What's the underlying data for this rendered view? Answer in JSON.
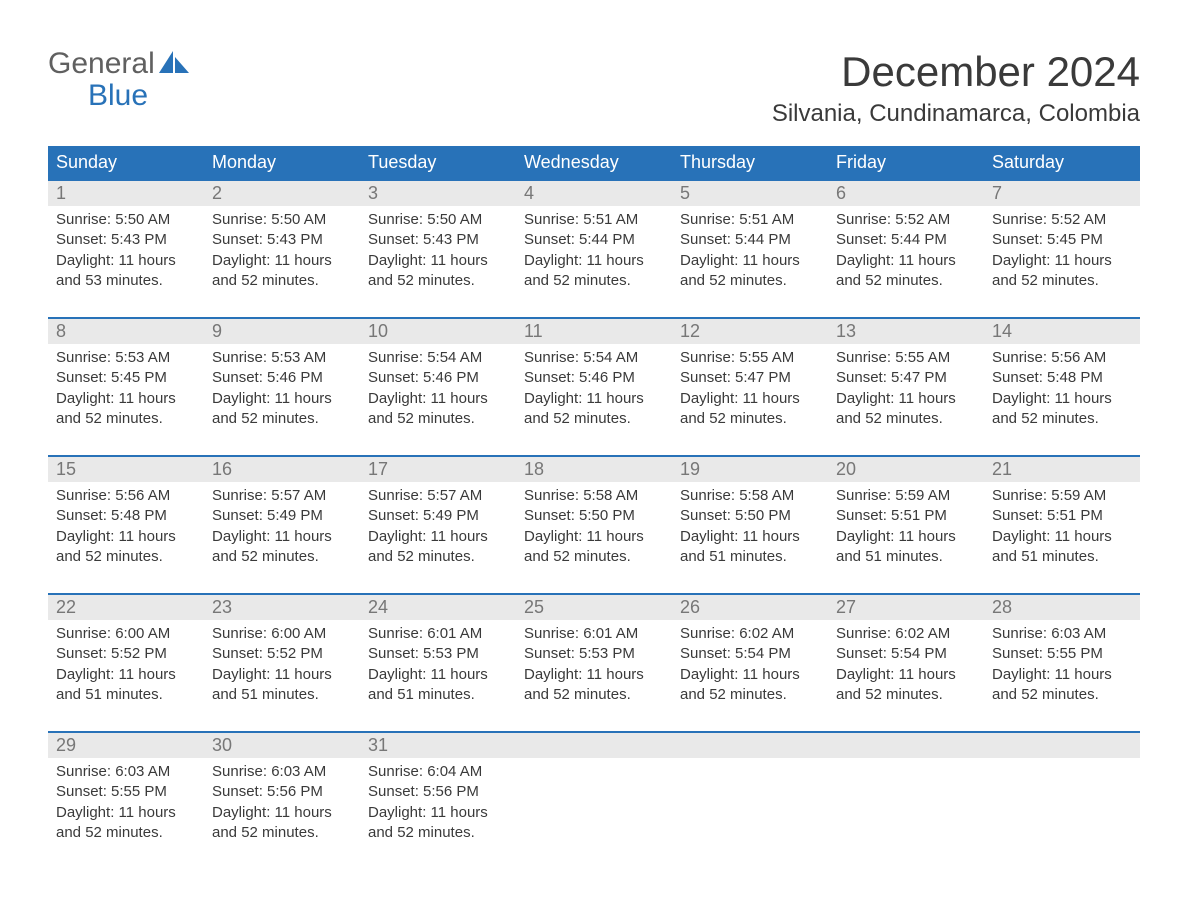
{
  "brand": {
    "word1": "General",
    "word2": "Blue",
    "accent_color": "#2872b8"
  },
  "title": "December 2024",
  "location": "Silvania, Cundinamarca, Colombia",
  "colors": {
    "header_bg": "#2872b8",
    "header_text": "#ffffff",
    "daynum_bg": "#e9e9e9",
    "daynum_text": "#777777",
    "body_text": "#3a3a3a",
    "page_bg": "#ffffff",
    "week_border": "#2872b8"
  },
  "day_headers": [
    "Sunday",
    "Monday",
    "Tuesday",
    "Wednesday",
    "Thursday",
    "Friday",
    "Saturday"
  ],
  "weeks": [
    [
      {
        "n": "1",
        "sunrise": "5:50 AM",
        "sunset": "5:43 PM",
        "daylight": "11 hours and 53 minutes."
      },
      {
        "n": "2",
        "sunrise": "5:50 AM",
        "sunset": "5:43 PM",
        "daylight": "11 hours and 52 minutes."
      },
      {
        "n": "3",
        "sunrise": "5:50 AM",
        "sunset": "5:43 PM",
        "daylight": "11 hours and 52 minutes."
      },
      {
        "n": "4",
        "sunrise": "5:51 AM",
        "sunset": "5:44 PM",
        "daylight": "11 hours and 52 minutes."
      },
      {
        "n": "5",
        "sunrise": "5:51 AM",
        "sunset": "5:44 PM",
        "daylight": "11 hours and 52 minutes."
      },
      {
        "n": "6",
        "sunrise": "5:52 AM",
        "sunset": "5:44 PM",
        "daylight": "11 hours and 52 minutes."
      },
      {
        "n": "7",
        "sunrise": "5:52 AM",
        "sunset": "5:45 PM",
        "daylight": "11 hours and 52 minutes."
      }
    ],
    [
      {
        "n": "8",
        "sunrise": "5:53 AM",
        "sunset": "5:45 PM",
        "daylight": "11 hours and 52 minutes."
      },
      {
        "n": "9",
        "sunrise": "5:53 AM",
        "sunset": "5:46 PM",
        "daylight": "11 hours and 52 minutes."
      },
      {
        "n": "10",
        "sunrise": "5:54 AM",
        "sunset": "5:46 PM",
        "daylight": "11 hours and 52 minutes."
      },
      {
        "n": "11",
        "sunrise": "5:54 AM",
        "sunset": "5:46 PM",
        "daylight": "11 hours and 52 minutes."
      },
      {
        "n": "12",
        "sunrise": "5:55 AM",
        "sunset": "5:47 PM",
        "daylight": "11 hours and 52 minutes."
      },
      {
        "n": "13",
        "sunrise": "5:55 AM",
        "sunset": "5:47 PM",
        "daylight": "11 hours and 52 minutes."
      },
      {
        "n": "14",
        "sunrise": "5:56 AM",
        "sunset": "5:48 PM",
        "daylight": "11 hours and 52 minutes."
      }
    ],
    [
      {
        "n": "15",
        "sunrise": "5:56 AM",
        "sunset": "5:48 PM",
        "daylight": "11 hours and 52 minutes."
      },
      {
        "n": "16",
        "sunrise": "5:57 AM",
        "sunset": "5:49 PM",
        "daylight": "11 hours and 52 minutes."
      },
      {
        "n": "17",
        "sunrise": "5:57 AM",
        "sunset": "5:49 PM",
        "daylight": "11 hours and 52 minutes."
      },
      {
        "n": "18",
        "sunrise": "5:58 AM",
        "sunset": "5:50 PM",
        "daylight": "11 hours and 52 minutes."
      },
      {
        "n": "19",
        "sunrise": "5:58 AM",
        "sunset": "5:50 PM",
        "daylight": "11 hours and 51 minutes."
      },
      {
        "n": "20",
        "sunrise": "5:59 AM",
        "sunset": "5:51 PM",
        "daylight": "11 hours and 51 minutes."
      },
      {
        "n": "21",
        "sunrise": "5:59 AM",
        "sunset": "5:51 PM",
        "daylight": "11 hours and 51 minutes."
      }
    ],
    [
      {
        "n": "22",
        "sunrise": "6:00 AM",
        "sunset": "5:52 PM",
        "daylight": "11 hours and 51 minutes."
      },
      {
        "n": "23",
        "sunrise": "6:00 AM",
        "sunset": "5:52 PM",
        "daylight": "11 hours and 51 minutes."
      },
      {
        "n": "24",
        "sunrise": "6:01 AM",
        "sunset": "5:53 PM",
        "daylight": "11 hours and 51 minutes."
      },
      {
        "n": "25",
        "sunrise": "6:01 AM",
        "sunset": "5:53 PM",
        "daylight": "11 hours and 52 minutes."
      },
      {
        "n": "26",
        "sunrise": "6:02 AM",
        "sunset": "5:54 PM",
        "daylight": "11 hours and 52 minutes."
      },
      {
        "n": "27",
        "sunrise": "6:02 AM",
        "sunset": "5:54 PM",
        "daylight": "11 hours and 52 minutes."
      },
      {
        "n": "28",
        "sunrise": "6:03 AM",
        "sunset": "5:55 PM",
        "daylight": "11 hours and 52 minutes."
      }
    ],
    [
      {
        "n": "29",
        "sunrise": "6:03 AM",
        "sunset": "5:55 PM",
        "daylight": "11 hours and 52 minutes."
      },
      {
        "n": "30",
        "sunrise": "6:03 AM",
        "sunset": "5:56 PM",
        "daylight": "11 hours and 52 minutes."
      },
      {
        "n": "31",
        "sunrise": "6:04 AM",
        "sunset": "5:56 PM",
        "daylight": "11 hours and 52 minutes."
      },
      null,
      null,
      null,
      null
    ]
  ],
  "labels": {
    "sunrise": "Sunrise: ",
    "sunset": "Sunset: ",
    "daylight": "Daylight: "
  }
}
